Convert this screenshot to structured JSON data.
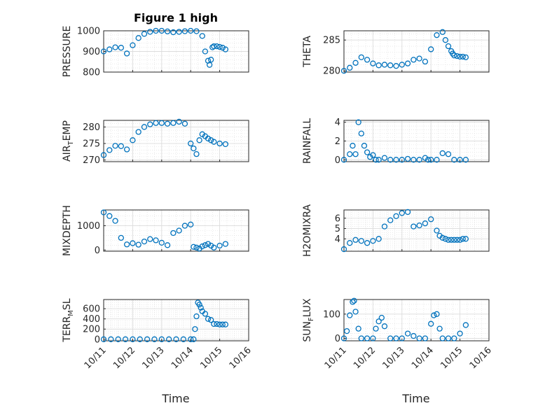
{
  "figure_title": "Figure 1 high",
  "x_axis": {
    "label": "Time",
    "tick_labels": [
      "10/11",
      "10/12",
      "10/13",
      "10/14",
      "10/15",
      "10/16"
    ],
    "range_days": [
      0,
      5
    ]
  },
  "colors": {
    "marker": "#0072BD",
    "axes": "#262626",
    "grid": "#DCDCDC",
    "background": "#FFFFFF"
  },
  "chart_data": [
    {
      "type": "scatter",
      "ylabel_main": "PRESSURE",
      "ylim": [
        800,
        1000
      ],
      "yticks": [
        800,
        900,
        1000
      ],
      "x": [
        0,
        0.2,
        0.4,
        0.6,
        0.8,
        1.0,
        1.2,
        1.4,
        1.6,
        1.8,
        2.0,
        2.2,
        2.4,
        2.6,
        2.8,
        3.0,
        3.2,
        3.4,
        3.5,
        3.6,
        3.65,
        3.7,
        3.75,
        3.8,
        3.9,
        4.0,
        4.1,
        4.2
      ],
      "y": [
        900,
        910,
        920,
        918,
        890,
        930,
        965,
        985,
        995,
        1000,
        1000,
        997,
        993,
        995,
        998,
        1000,
        998,
        975,
        900,
        855,
        835,
        860,
        920,
        925,
        925,
        922,
        918,
        910
      ]
    },
    {
      "type": "scatter",
      "ylabel_main": "THETA",
      "ylim": [
        279.8,
        286.5
      ],
      "yticks": [
        280,
        285
      ],
      "x": [
        0,
        0.2,
        0.4,
        0.6,
        0.8,
        1.0,
        1.2,
        1.4,
        1.6,
        1.8,
        2.0,
        2.2,
        2.4,
        2.6,
        2.8,
        3.0,
        3.2,
        3.4,
        3.5,
        3.6,
        3.7,
        3.75,
        3.8,
        3.9,
        4.0,
        4.1,
        4.2
      ],
      "y": [
        280,
        280.5,
        281.3,
        282.2,
        281.8,
        281.2,
        280.9,
        281.0,
        280.9,
        280.8,
        281.0,
        281.2,
        281.8,
        282.0,
        281.5,
        283.5,
        285.8,
        286.3,
        285.0,
        284.0,
        283.2,
        282.8,
        282.5,
        282.4,
        282.3,
        282.3,
        282.2
      ]
    },
    {
      "type": "scatter",
      "ylabel_main": "AIR",
      "ylabel_sub": "T",
      "ylabel_rest": "EMP",
      "ylim": [
        269.5,
        282
      ],
      "yticks": [
        270,
        275,
        280
      ],
      "x": [
        0,
        0.2,
        0.4,
        0.6,
        0.8,
        1.0,
        1.2,
        1.4,
        1.6,
        1.8,
        2.0,
        2.2,
        2.4,
        2.6,
        2.8,
        3.0,
        3.1,
        3.2,
        3.3,
        3.4,
        3.5,
        3.6,
        3.7,
        3.8,
        4.0,
        4.2
      ],
      "y": [
        271.5,
        273,
        274.3,
        274.2,
        273.2,
        276,
        278.5,
        280,
        280.8,
        281.2,
        281.2,
        281,
        281.2,
        281.6,
        281,
        275,
        273.5,
        271.8,
        276,
        277.8,
        277.2,
        276.5,
        276,
        275.5,
        275,
        274.8
      ]
    },
    {
      "type": "scatter",
      "ylabel_main": "RAINFALL",
      "ylim": [
        -0.2,
        4.2
      ],
      "yticks": [
        0,
        2,
        4
      ],
      "x": [
        0,
        0.2,
        0.3,
        0.4,
        0.5,
        0.6,
        0.7,
        0.8,
        0.9,
        1.0,
        1.1,
        1.2,
        1.4,
        1.6,
        1.8,
        2.0,
        2.2,
        2.4,
        2.6,
        2.8,
        2.9,
        3.0,
        3.2,
        3.4,
        3.6,
        3.8,
        4.0,
        4.2
      ],
      "y": [
        0,
        0.6,
        1.5,
        0.6,
        4.0,
        2.8,
        1.5,
        0.8,
        0.3,
        0.5,
        0,
        0,
        0.2,
        0,
        0,
        0,
        0.1,
        0,
        0,
        0.2,
        0,
        0,
        0,
        0.7,
        0.6,
        0,
        0,
        0
      ]
    },
    {
      "type": "scatter",
      "ylabel_main": "MIXDEPTH",
      "ylim": [
        -50,
        1650
      ],
      "yticks": [
        0,
        1000
      ],
      "x": [
        0,
        0.2,
        0.4,
        0.6,
        0.8,
        1.0,
        1.2,
        1.4,
        1.6,
        1.8,
        2.0,
        2.2,
        2.4,
        2.6,
        2.8,
        3.0,
        3.1,
        3.2,
        3.3,
        3.4,
        3.5,
        3.6,
        3.7,
        3.8,
        4.0,
        4.2
      ],
      "y": [
        1550,
        1400,
        1200,
        500,
        230,
        280,
        220,
        350,
        450,
        400,
        300,
        200,
        700,
        800,
        1000,
        1050,
        130,
        100,
        60,
        150,
        200,
        250,
        180,
        100,
        180,
        250
      ]
    },
    {
      "type": "scatter",
      "ylabel_main": "H2OMIXRA",
      "ylim": [
        2.8,
        6.8
      ],
      "yticks": [
        4,
        5,
        6
      ],
      "x": [
        0,
        0.2,
        0.4,
        0.6,
        0.8,
        1.0,
        1.2,
        1.4,
        1.6,
        1.8,
        2.0,
        2.2,
        2.4,
        2.6,
        2.8,
        3.0,
        3.2,
        3.3,
        3.4,
        3.5,
        3.6,
        3.7,
        3.8,
        3.9,
        4.0,
        4.1,
        4.2
      ],
      "y": [
        3.0,
        3.6,
        3.9,
        3.8,
        3.6,
        3.8,
        4.0,
        5.2,
        5.8,
        6.2,
        6.5,
        6.6,
        5.2,
        5.3,
        5.5,
        5.9,
        4.8,
        4.3,
        4.1,
        4.0,
        3.9,
        3.9,
        3.9,
        3.9,
        3.9,
        4.0,
        4.0
      ]
    },
    {
      "type": "scatter",
      "ylabel_main": "TERR",
      "ylabel_sub": "M",
      "ylabel_rest": "SL",
      "ylim": [
        -30,
        780
      ],
      "yticks": [
        0,
        200,
        400,
        600
      ],
      "x": [
        0,
        0.25,
        0.5,
        0.75,
        1.0,
        1.25,
        1.5,
        1.75,
        2.0,
        2.25,
        2.5,
        2.75,
        3.0,
        3.1,
        3.15,
        3.2,
        3.25,
        3.3,
        3.35,
        3.4,
        3.5,
        3.6,
        3.7,
        3.8,
        3.9,
        4.0,
        4.1,
        4.2
      ],
      "y": [
        0,
        0,
        0,
        0,
        0,
        0,
        0,
        0,
        0,
        0,
        0,
        0,
        0,
        0,
        200,
        450,
        720,
        680,
        620,
        550,
        500,
        400,
        380,
        300,
        300,
        290,
        290,
        290
      ]
    },
    {
      "type": "scatter",
      "ylabel_main": "SUN",
      "ylabel_sub": "F",
      "ylabel_rest": "LUX",
      "ylim": [
        -10,
        160
      ],
      "yticks": [
        0,
        100
      ],
      "x": [
        0,
        0.1,
        0.2,
        0.3,
        0.35,
        0.4,
        0.5,
        0.6,
        0.8,
        1.0,
        1.1,
        1.2,
        1.3,
        1.4,
        1.6,
        1.8,
        2.0,
        2.2,
        2.4,
        2.6,
        2.8,
        3.0,
        3.1,
        3.2,
        3.3,
        3.4,
        3.6,
        3.8,
        4.0,
        4.2
      ],
      "y": [
        0,
        30,
        95,
        150,
        155,
        110,
        40,
        0,
        0,
        0,
        40,
        70,
        85,
        50,
        0,
        0,
        0,
        20,
        10,
        0,
        0,
        60,
        95,
        100,
        40,
        0,
        0,
        0,
        20,
        55
      ]
    }
  ]
}
